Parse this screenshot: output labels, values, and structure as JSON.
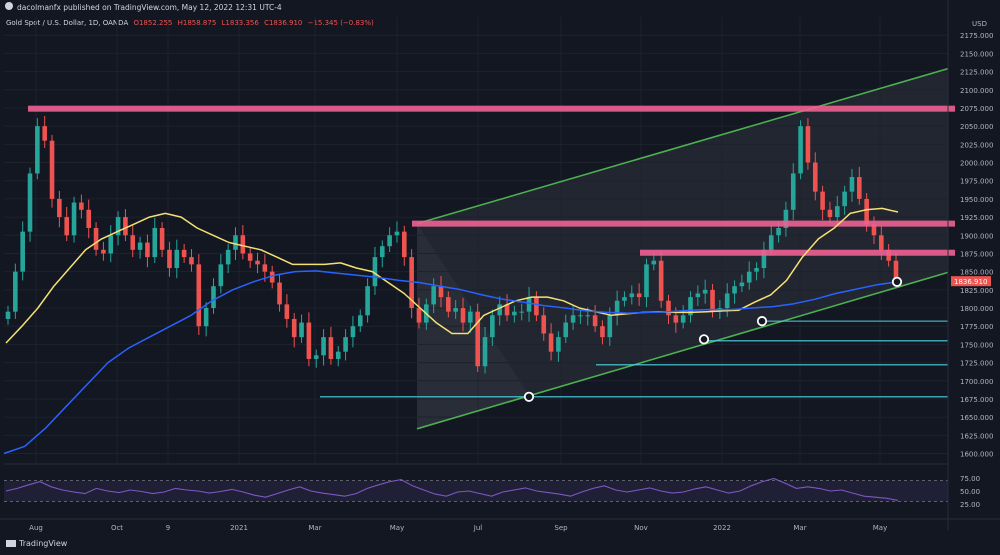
{
  "header": {
    "publisher": "dacolmanfx published on TradingView.com, May 12, 2022 12:31 UTC-4"
  },
  "legend": {
    "symbol": "Gold Spot / U.S. Dollar, 1D, OANDA",
    "open": "O1852.255",
    "high": "H1858.875",
    "low": "L1833.356",
    "close": "C1836.910",
    "change": "−15.345 (−0.83%)"
  },
  "footer": {
    "brand": "TradingView"
  },
  "chart_data": {
    "type": "candlestick",
    "title": "Gold Spot / U.S. Dollar, 1D, OANDA",
    "currency": "USD",
    "last_price": "1836.910",
    "price_axis": {
      "range": [
        1587,
        2200
      ],
      "ticks": [
        "2175.000",
        "2150.000",
        "2125.000",
        "2100.000",
        "2075.000",
        "2050.000",
        "2025.000",
        "2000.000",
        "1975.000",
        "1950.000",
        "1925.000",
        "1900.000",
        "1875.000",
        "1850.000",
        "1825.000",
        "1800.000",
        "1775.000",
        "1750.000",
        "1725.000",
        "1700.000",
        "1675.000",
        "1650.000",
        "1625.000",
        "1600.000"
      ]
    },
    "time_axis": {
      "labels": [
        "Aug",
        "Oct",
        "9",
        "2021",
        "Mar",
        "May",
        "Jul",
        "Sep",
        "Nov",
        "2022",
        "Mar",
        "May"
      ]
    },
    "price_closes": [
      1795,
      1850,
      1905,
      1985,
      2050,
      2030,
      1950,
      1925,
      1900,
      1945,
      1935,
      1910,
      1880,
      1875,
      1900,
      1925,
      1900,
      1880,
      1890,
      1870,
      1910,
      1880,
      1855,
      1880,
      1870,
      1860,
      1775,
      1800,
      1830,
      1860,
      1880,
      1900,
      1875,
      1865,
      1860,
      1850,
      1835,
      1805,
      1785,
      1760,
      1780,
      1730,
      1735,
      1760,
      1730,
      1740,
      1760,
      1775,
      1790,
      1830,
      1870,
      1885,
      1900,
      1905,
      1870,
      1800,
      1780,
      1805,
      1830,
      1815,
      1795,
      1800,
      1780,
      1795,
      1720,
      1760,
      1790,
      1805,
      1790,
      1795,
      1795,
      1815,
      1790,
      1765,
      1740,
      1760,
      1780,
      1790,
      1790,
      1790,
      1775,
      1760,
      1790,
      1810,
      1815,
      1820,
      1815,
      1860,
      1865,
      1810,
      1790,
      1780,
      1790,
      1815,
      1820,
      1825,
      1795,
      1800,
      1820,
      1830,
      1835,
      1850,
      1855,
      1880,
      1900,
      1910,
      1935,
      1985,
      2050,
      2000,
      1960,
      1935,
      1925,
      1940,
      1960,
      1980,
      1950,
      1915,
      1900,
      1880,
      1865,
      1836.91
    ],
    "sma_yellow": [
      1752,
      1775,
      1800,
      1830,
      1855,
      1880,
      1895,
      1905,
      1915,
      1925,
      1930,
      1925,
      1910,
      1900,
      1890,
      1885,
      1880,
      1870,
      1860,
      1860,
      1860,
      1862,
      1855,
      1850,
      1835,
      1820,
      1800,
      1780,
      1765,
      1765,
      1790,
      1800,
      1810,
      1815,
      1815,
      1810,
      1800,
      1795,
      1790,
      1792,
      1794,
      1795,
      1794,
      1794,
      1795,
      1796,
      1797,
      1808,
      1818,
      1838,
      1870,
      1895,
      1910,
      1930,
      1935,
      1937,
      1932
    ],
    "sma_blue": [
      1600,
      1610,
      1635,
      1665,
      1695,
      1725,
      1745,
      1760,
      1775,
      1790,
      1810,
      1825,
      1836,
      1845,
      1850,
      1851,
      1848,
      1845,
      1842,
      1838,
      1835,
      1830,
      1825,
      1818,
      1812,
      1808,
      1803,
      1800,
      1796,
      1794,
      1793,
      1794,
      1795,
      1797,
      1798,
      1798,
      1800,
      1802,
      1806,
      1812,
      1820,
      1826,
      1832,
      1836
    ],
    "annotations": {
      "resistance_zones": [
        2074,
        1916,
        1876
      ],
      "support_lines": [
        1782,
        1755,
        1722,
        1678
      ],
      "trendline_lower": [
        [
          0,
          1634
        ],
        [
          1,
          1849
        ]
      ],
      "trendline_upper": [
        [
          0,
          1916
        ],
        [
          1,
          2129
        ]
      ],
      "touch_points": [
        1678,
        1757,
        1782,
        1836
      ]
    },
    "rsi": {
      "ticks": [
        "75.00",
        "50.00",
        "25.00"
      ],
      "overbought": 70,
      "oversold": 30,
      "values": [
        50,
        55,
        62,
        68,
        58,
        52,
        48,
        45,
        55,
        50,
        47,
        52,
        49,
        45,
        48,
        55,
        52,
        50,
        46,
        49,
        53,
        48,
        42,
        38,
        45,
        52,
        58,
        50,
        46,
        43,
        40,
        45,
        55,
        62,
        68,
        72,
        60,
        52,
        44,
        40,
        48,
        50,
        45,
        40,
        48,
        52,
        56,
        50,
        47,
        44,
        40,
        48,
        55,
        60,
        52,
        48,
        52,
        56,
        50,
        46,
        48,
        54,
        58,
        52,
        46,
        50,
        60,
        68,
        74,
        65,
        55,
        58,
        55,
        50,
        52,
        46,
        40,
        38,
        36,
        32
      ]
    }
  }
}
